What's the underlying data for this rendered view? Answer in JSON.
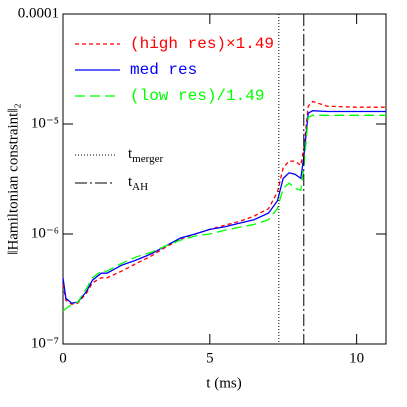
{
  "chart_data": {
    "type": "line",
    "xlabel": "t (ms)",
    "ylabel": "‖Hamiltonian constraint‖₂",
    "x": [
      0,
      0.1,
      0.3,
      0.5,
      0.8,
      1.0,
      1.3,
      1.5,
      2.0,
      2.5,
      3.0,
      3.5,
      4.0,
      4.5,
      5.0,
      5.5,
      6.0,
      6.5,
      7.0,
      7.3,
      7.5,
      7.7,
      7.9,
      8.1,
      8.2,
      8.35,
      8.5,
      9,
      10,
      11
    ],
    "series": [
      {
        "name": "(high res)×1.49",
        "color": "#ff0000",
        "dash": "4,3",
        "values": [
          3.5e-07,
          2.5e-07,
          2.3e-07,
          2.35e-07,
          2.9e-07,
          3.6e-07,
          4e-07,
          4e-07,
          4.6e-07,
          5.4e-07,
          6.3e-07,
          7.6e-07,
          9e-07,
          1e-06,
          1.1e-06,
          1.2e-06,
          1.3e-06,
          1.45e-06,
          1.7e-06,
          2.4e-06,
          4e-06,
          4.6e-06,
          4.6e-06,
          4.2e-06,
          6e-06,
          1.45e-05,
          1.6e-05,
          1.45e-05,
          1.42e-05,
          1.42e-05
        ]
      },
      {
        "name": "med res",
        "color": "#0000ff",
        "dash": "none",
        "values": [
          4e-07,
          2.6e-07,
          2.35e-07,
          2.4e-07,
          3e-07,
          3.8e-07,
          4.4e-07,
          4.4e-07,
          5.2e-07,
          5.8e-07,
          6.6e-07,
          7.8e-07,
          9.2e-07,
          1e-06,
          1.1e-06,
          1.16e-06,
          1.25e-06,
          1.35e-06,
          1.55e-06,
          2e-06,
          3.2e-06,
          3.6e-06,
          3.5e-06,
          3.2e-06,
          5e-06,
          1.25e-05,
          1.32e-05,
          1.3e-05,
          1.3e-05,
          1.3e-05
        ]
      },
      {
        "name": "(low res)/1.49",
        "color": "#00ff00",
        "dash": "10,5",
        "values": [
          2e-07,
          2.1e-07,
          2.3e-07,
          2.4e-07,
          3.2e-07,
          4e-07,
          4.6e-07,
          4.6e-07,
          5.4e-07,
          6.2e-07,
          6.8e-07,
          7.8e-07,
          8.8e-07,
          9.6e-07,
          1e-06,
          1.08e-06,
          1.15e-06,
          1.22e-06,
          1.35e-06,
          1.7e-06,
          2.6e-06,
          2.9e-06,
          2.6e-06,
          2.5e-06,
          4e-06,
          1.15e-05,
          1.2e-05,
          1.2e-05,
          1.2e-05,
          1.2e-05
        ]
      }
    ],
    "vlines": [
      {
        "x": 7.35,
        "label": "t",
        "subscript": "merger",
        "dash": "1,2"
      },
      {
        "x": 8.2,
        "label": "t",
        "subscript": "AH",
        "dash": "12,3,2,3"
      }
    ],
    "xlim": [
      0,
      11
    ],
    "xticks": [
      0,
      5,
      10
    ],
    "ylim": [
      1e-07,
      0.0001
    ],
    "ylog": true,
    "yticks": [
      {
        "value": 1e-07,
        "label": "10⁻⁷"
      },
      {
        "value": 1e-06,
        "label": "10⁻⁶"
      },
      {
        "value": 1e-05,
        "label": "10⁻⁵"
      },
      0.0001
    ]
  }
}
